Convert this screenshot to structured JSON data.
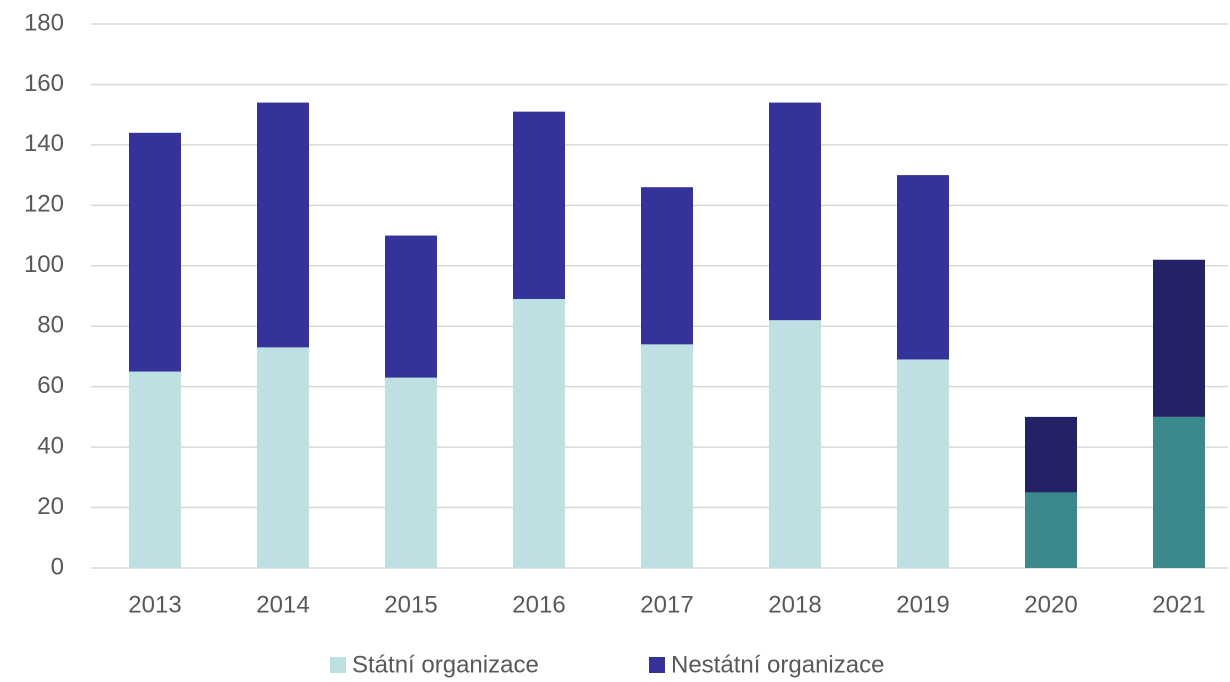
{
  "chart_data": {
    "type": "stacked_bar",
    "categories": [
      "2013",
      "2014",
      "2015",
      "2016",
      "2017",
      "2018",
      "2019",
      "2020",
      "2021"
    ],
    "series": [
      {
        "name": "Státní organizace",
        "color": "#bde0e3",
        "values": [
          65,
          73,
          63,
          89,
          74,
          82,
          69,
          25,
          50
        ],
        "colors": [
          "#bde0e3",
          "#bde0e3",
          "#bde0e3",
          "#bde0e3",
          "#bde0e3",
          "#bde0e3",
          "#bde0e3",
          "#3a8a8c",
          "#3a8a8c"
        ]
      },
      {
        "name": "Nestátní organizace",
        "color": "#343399",
        "values": [
          79,
          81,
          47,
          62,
          52,
          72,
          61,
          25,
          52
        ],
        "colors": [
          "#343399",
          "#343399",
          "#343399",
          "#343399",
          "#343399",
          "#343399",
          "#343399",
          "#232266",
          "#232266"
        ]
      }
    ],
    "ylim": [
      0,
      180
    ],
    "yticks": [
      0,
      20,
      40,
      60,
      80,
      100,
      120,
      140,
      160,
      180
    ],
    "grid": true,
    "legend": "bottom"
  }
}
